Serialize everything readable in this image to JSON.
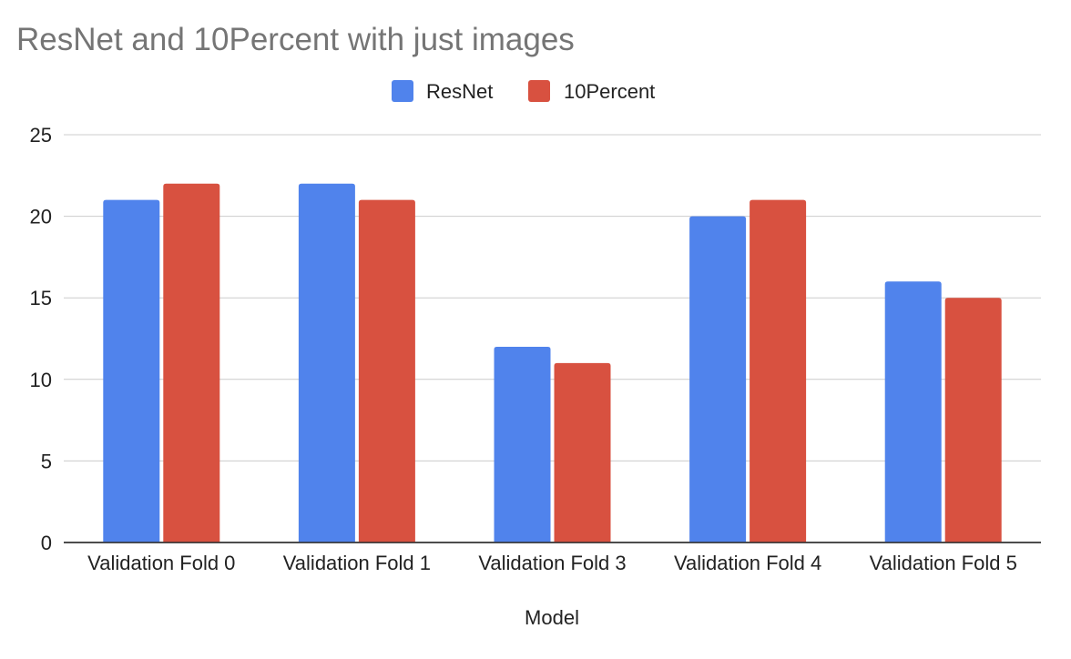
{
  "chart_data": {
    "type": "bar",
    "title": "ResNet and 10Percent with just images",
    "xlabel": "Model",
    "ylabel": "",
    "categories": [
      "Validation Fold 0",
      "Validation Fold 1",
      "Validation Fold 3",
      "Validation Fold 4",
      "Validation Fold 5"
    ],
    "series": [
      {
        "name": "ResNet",
        "color": "#5083ec",
        "values": [
          21,
          22,
          12,
          20,
          16
        ]
      },
      {
        "name": "10Percent",
        "color": "#d85140",
        "values": [
          22,
          21,
          11,
          21,
          15
        ]
      }
    ],
    "ylim": [
      0,
      25
    ],
    "yticks": [
      "0",
      "5",
      "10",
      "15",
      "20",
      "25"
    ],
    "grid": true,
    "legend_position": "top-center"
  }
}
